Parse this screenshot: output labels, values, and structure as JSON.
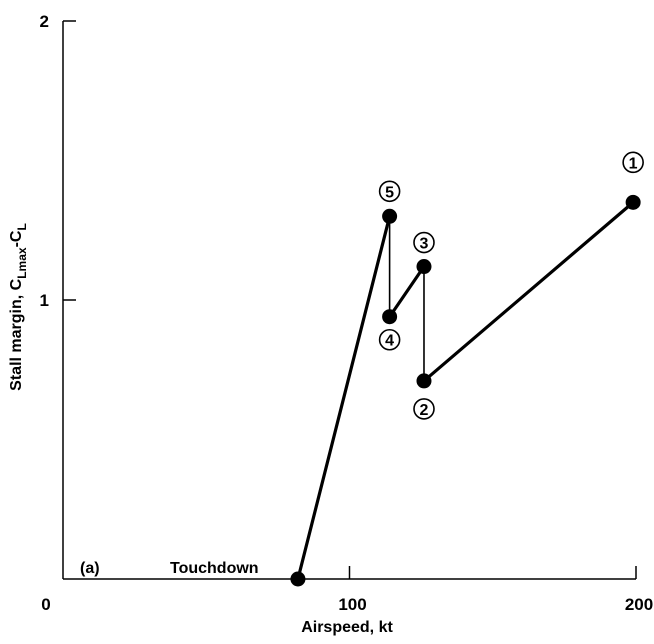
{
  "chart_data": {
    "type": "line",
    "title": "",
    "xlabel": "Airspeed, kt",
    "ylabel": {
      "prefix": "Stall margin, C",
      "sub1": "Lmax",
      "mid": "-C",
      "sub2": "L"
    },
    "xlim": [
      0,
      200
    ],
    "ylim": [
      0,
      2
    ],
    "x_ticks": [
      0,
      100,
      200
    ],
    "x_tick_labels": [
      "0",
      "100",
      "200"
    ],
    "y_ticks": [
      1,
      2
    ],
    "y_tick_labels": [
      "1",
      "2"
    ],
    "grid": false,
    "series": [
      {
        "points": [
          {
            "label": "1",
            "x": 199,
            "y": 1.35
          },
          {
            "label": "2",
            "x": 126,
            "y": 0.71
          },
          {
            "label": "3",
            "x": 126,
            "y": 1.12
          },
          {
            "label": "4",
            "x": 114,
            "y": 0.94
          },
          {
            "label": "5",
            "x": 114,
            "y": 1.3
          },
          {
            "label": "",
            "x": 82,
            "y": 0.0
          }
        ]
      }
    ],
    "annotations": {
      "panel": "(a)",
      "touchdown": "Touchdown"
    }
  }
}
